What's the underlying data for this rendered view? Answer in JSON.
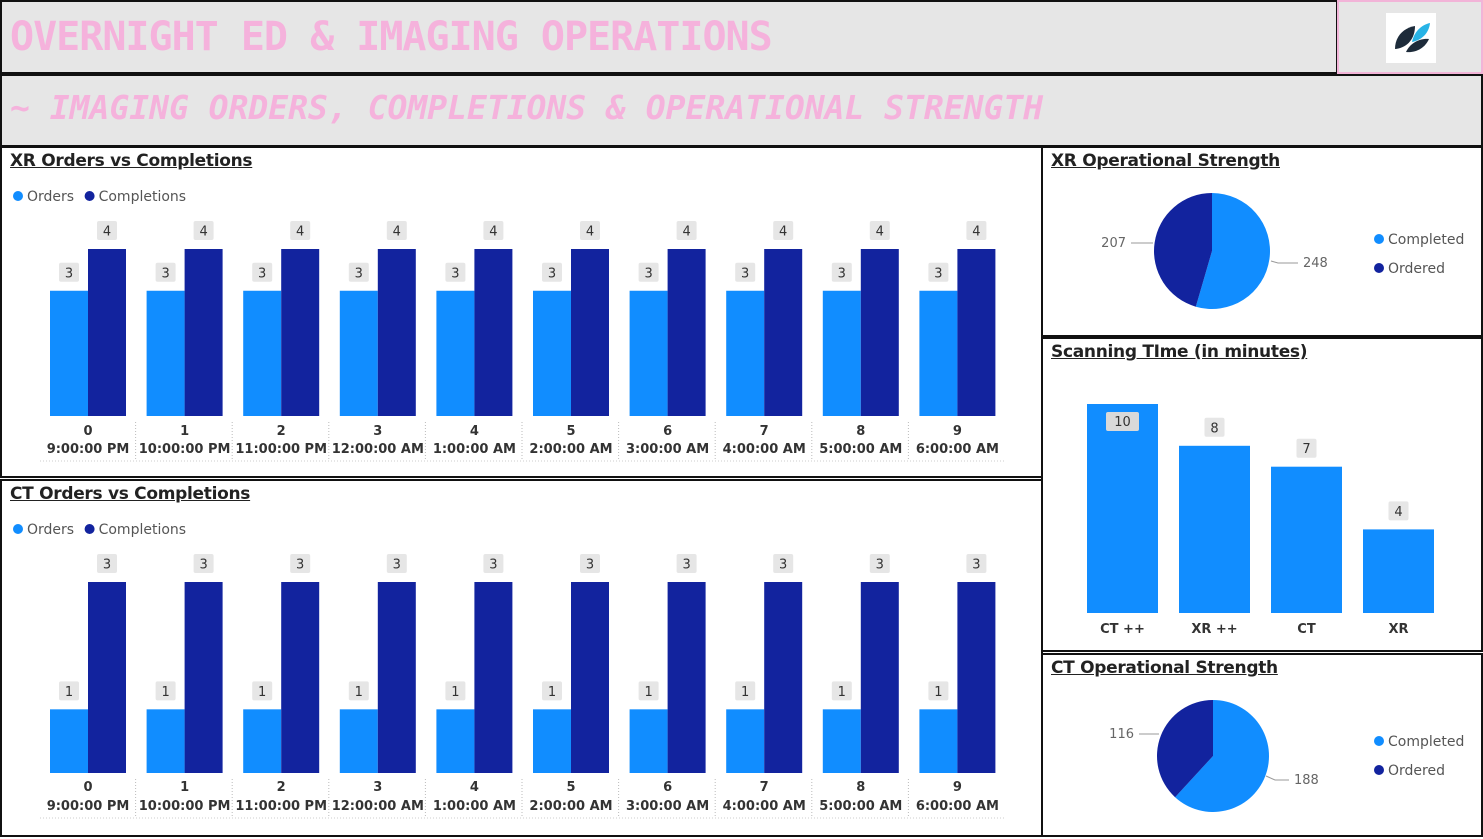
{
  "header": {
    "title": "OVERNIGHT ED & IMAGING OPERATIONS",
    "subtitle": "~ IMAGING ORDERS, COMPLETIONS & OPERATIONAL STRENGTH"
  },
  "colors": {
    "orders": "#118dff",
    "completions": "#12239e",
    "title_pink": "#f5b2dc",
    "header_bg": "#e6e6e6",
    "label_bg": "#e6e6e6"
  },
  "chart_data": [
    {
      "id": "xr_orders_vs_completions",
      "type": "bar",
      "title": "XR Orders vs Completions",
      "legend": [
        "Orders",
        "Completions"
      ],
      "legend_position": "top-left",
      "categories": [
        "0",
        "1",
        "2",
        "3",
        "4",
        "5",
        "6",
        "7",
        "8",
        "9"
      ],
      "sub_categories": [
        "9:00:00 PM",
        "10:00:00 PM",
        "11:00:00 PM",
        "12:00:00 AM",
        "1:00:00 AM",
        "2:00:00 AM",
        "3:00:00 AM",
        "4:00:00 AM",
        "5:00:00 AM",
        "6:00:00 AM"
      ],
      "series": [
        {
          "name": "Orders",
          "values": [
            3,
            3,
            3,
            3,
            3,
            3,
            3,
            3,
            3,
            3
          ]
        },
        {
          "name": "Completions",
          "values": [
            4,
            4,
            4,
            4,
            4,
            4,
            4,
            4,
            4,
            4
          ]
        }
      ],
      "ylim": [
        0,
        4
      ],
      "grid": false
    },
    {
      "id": "ct_orders_vs_completions",
      "type": "bar",
      "title": "CT Orders vs Completions",
      "legend": [
        "Orders",
        "Completions"
      ],
      "legend_position": "top-left",
      "categories": [
        "0",
        "1",
        "2",
        "3",
        "4",
        "5",
        "6",
        "7",
        "8",
        "9"
      ],
      "sub_categories": [
        "9:00:00 PM",
        "10:00:00 PM",
        "11:00:00 PM",
        "12:00:00 AM",
        "1:00:00 AM",
        "2:00:00 AM",
        "3:00:00 AM",
        "4:00:00 AM",
        "5:00:00 AM",
        "6:00:00 AM"
      ],
      "series": [
        {
          "name": "Orders",
          "values": [
            1,
            1,
            1,
            1,
            1,
            1,
            1,
            1,
            1,
            1
          ]
        },
        {
          "name": "Completions",
          "values": [
            3,
            3,
            3,
            3,
            3,
            3,
            3,
            3,
            3,
            3
          ]
        }
      ],
      "ylim": [
        0,
        3
      ],
      "grid": false
    },
    {
      "id": "xr_operational_strength",
      "type": "pie",
      "title": "XR Operational Strength",
      "labels": [
        "Completed",
        "Ordered"
      ],
      "values": [
        248,
        207
      ],
      "legend_position": "right"
    },
    {
      "id": "scanning_time",
      "type": "bar",
      "title": "Scanning TIme (in minutes)",
      "categories": [
        "CT ++",
        "XR ++",
        "CT",
        "XR"
      ],
      "values": [
        10,
        8,
        7,
        4
      ],
      "ylim": [
        0,
        10
      ],
      "grid": false
    },
    {
      "id": "ct_operational_strength",
      "type": "pie",
      "title": "CT Operational Strength",
      "labels": [
        "Completed",
        "Ordered"
      ],
      "values": [
        188,
        116
      ],
      "legend_position": "right"
    }
  ]
}
